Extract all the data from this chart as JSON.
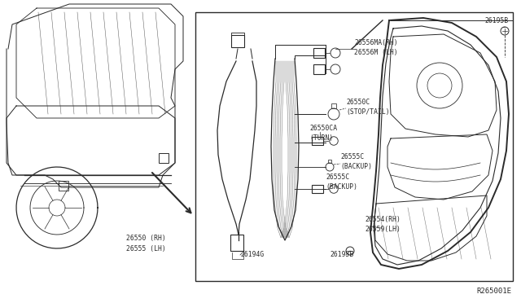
{
  "bg_color": "#ffffff",
  "line_color": "#2a2a2a",
  "diagram_id": "R265001E",
  "labels": {
    "part1a": "26556MA(RH)",
    "part1b": "26556M (LH)",
    "part2": "26195B",
    "part3a": "26550C",
    "part3b": "(STOP/TAIL)",
    "part4a": "26550CA",
    "part4b": "(TURN)",
    "part5a": "26555C",
    "part5b": "(BACKUP)",
    "part6a": "26555C",
    "part6b": "(BACKUP)",
    "part7a": "26554(RH)",
    "part7b": "26559(LH)",
    "part8a": "26550 (RH)",
    "part8b": "26555 (LH)",
    "part9": "26194G",
    "part10": "26195B"
  },
  "figsize": [
    6.4,
    3.72
  ],
  "dpi": 100
}
